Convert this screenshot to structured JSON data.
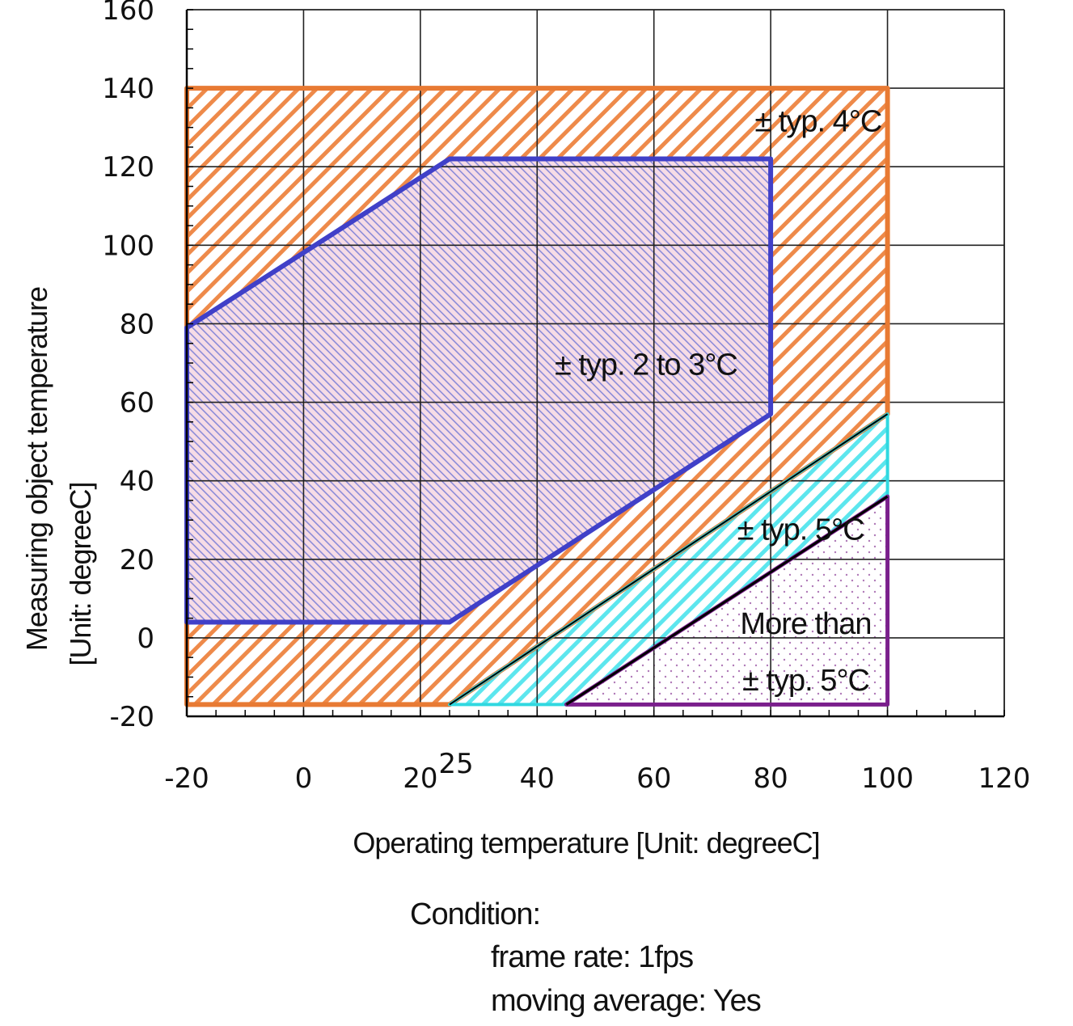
{
  "chart_data": {
    "type": "area",
    "title": "",
    "xlabel": "Operating temperature [Unit: degreeC]",
    "ylabel": "Measuring object temperature",
    "ylabel_unit": "[Unit: degreeC]",
    "xlim": [
      -20,
      120
    ],
    "ylim": [
      -20,
      160
    ],
    "x_ticks": [
      -20,
      0,
      20,
      40,
      60,
      80,
      100,
      120
    ],
    "x_tick_labels": [
      "-20",
      "0",
      "20",
      "40",
      "60",
      "80",
      "100",
      "120"
    ],
    "x_extra_tick": {
      "value": 25,
      "label": "25"
    },
    "y_ticks": [
      -20,
      0,
      20,
      40,
      60,
      80,
      100,
      120,
      140,
      160
    ],
    "y_tick_labels": [
      "-20",
      "0",
      "20",
      "40",
      "60",
      "80",
      "100",
      "120",
      "140",
      "160"
    ],
    "grid": true,
    "regions": [
      {
        "label": "± typ. 4°C",
        "color": "#E87A33",
        "polygon": [
          [
            -20,
            140
          ],
          [
            100,
            140
          ],
          [
            100,
            57
          ],
          [
            25,
            -17
          ],
          [
            -20,
            -17
          ]
        ],
        "label_at": [
          99,
          129
        ]
      },
      {
        "label": "± typ. 2 to 3°C",
        "color": "#4040C8",
        "polygon": [
          [
            -20,
            79
          ],
          [
            25,
            122
          ],
          [
            80,
            122
          ],
          [
            80,
            57
          ],
          [
            25,
            4
          ],
          [
            -20,
            4
          ]
        ],
        "label_at": [
          43,
          67
        ]
      },
      {
        "label": "± typ. 5°C",
        "color": "#30D8E0",
        "polygon": [
          [
            25,
            -17
          ],
          [
            100,
            57
          ],
          [
            100,
            36
          ],
          [
            45,
            -17
          ]
        ],
        "label_at": [
          96,
          25
        ]
      },
      {
        "label_lines": [
          "More than",
          "± typ. 5°C"
        ],
        "color": "#7A1F8C",
        "polygon": [
          [
            45,
            -17
          ],
          [
            100,
            36
          ],
          [
            100,
            -17
          ]
        ],
        "label_at": [
          86,
          1
        ]
      }
    ]
  },
  "condition": {
    "title": "Condition:",
    "frame_rate": "frame rate: 1fps",
    "moving_average": "moving average: Yes"
  }
}
